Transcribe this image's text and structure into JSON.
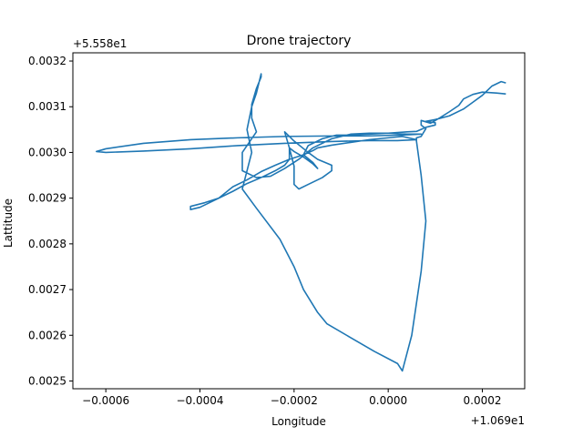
{
  "chart_data": {
    "type": "line",
    "title": "Drone trajectory",
    "xlabel": "Longitude",
    "ylabel": "Lattitude",
    "x_offset_text": "+1.069e1",
    "y_offset_text": "+5.558e1",
    "xlim": [
      -0.00067,
      0.00029
    ],
    "ylim": [
      0.002483,
      0.003218
    ],
    "x_ticks": [
      -0.0006,
      -0.0004,
      -0.0002,
      0.0,
      0.0002
    ],
    "x_tick_labels": [
      "−0.0006",
      "−0.0004",
      "−0.0002",
      "0.0000",
      "0.0002"
    ],
    "y_ticks": [
      0.0025,
      0.0026,
      0.0027,
      0.0028,
      0.0029,
      0.003,
      0.0031,
      0.0032
    ],
    "y_tick_labels": [
      "0.0025",
      "0.0026",
      "0.0027",
      "0.0028",
      "0.0029",
      "0.0030",
      "0.0031",
      "0.0032"
    ],
    "grid": false,
    "color": "#1f77b4",
    "series": [
      {
        "points": [
          [
            0.00025,
            0.003128
          ],
          [
            0.00023,
            0.00313
          ],
          [
            0.0002,
            0.003132
          ],
          [
            0.00018,
            0.003127
          ],
          [
            0.00016,
            0.003117
          ],
          [
            0.00015,
            0.003103
          ],
          [
            0.00013,
            0.003089
          ],
          [
            0.00011,
            0.003076
          ],
          [
            9e-05,
            0.003064
          ],
          [
            7e-05,
            0.00307
          ],
          [
            7e-05,
            0.00306
          ],
          [
            8e-05,
            0.003052
          ],
          [
            7e-05,
            0.003035
          ],
          [
            6e-05,
            0.003032
          ],
          [
            6e-05,
            0.003025
          ],
          [
            7e-05,
            0.00295
          ],
          [
            8e-05,
            0.00285
          ],
          [
            7e-05,
            0.00274
          ],
          [
            5e-05,
            0.0026
          ],
          [
            3e-05,
            0.002522
          ],
          [
            2e-05,
            0.002538
          ],
          [
            -3e-05,
            0.002565
          ],
          [
            -8e-05,
            0.002595
          ],
          [
            -0.00013,
            0.002625
          ],
          [
            -0.00015,
            0.00265
          ],
          [
            -0.00018,
            0.0027
          ],
          [
            -0.0002,
            0.00275
          ],
          [
            -0.00023,
            0.00281
          ],
          [
            -0.00028,
            0.002878
          ],
          [
            -0.00031,
            0.00292
          ],
          [
            -0.0003,
            0.00296
          ],
          [
            -0.00029,
            0.003
          ],
          [
            -0.0003,
            0.00305
          ],
          [
            -0.00029,
            0.0031
          ],
          [
            -0.00028,
            0.00313
          ],
          [
            -0.00027,
            0.003172
          ],
          [
            -0.00027,
            0.003165
          ],
          [
            -0.00028,
            0.00314
          ],
          [
            -0.00029,
            0.003105
          ],
          [
            -0.00029,
            0.003075
          ],
          [
            -0.00028,
            0.003045
          ],
          [
            -0.00031,
            0.003
          ],
          [
            -0.00031,
            0.00296
          ],
          [
            -0.00028,
            0.002945
          ],
          [
            -0.00025,
            0.002948
          ],
          [
            -0.00022,
            0.002965
          ],
          [
            -0.00019,
            0.002985
          ],
          [
            -0.00016,
            0.00301
          ],
          [
            -0.00012,
            0.00303
          ],
          [
            -8e-05,
            0.00304
          ],
          [
            -4e-05,
            0.003042
          ],
          [
            0.0,
            0.003042
          ],
          [
            4e-05,
            0.00304
          ],
          [
            6e-05,
            0.00304
          ],
          [
            7e-05,
            0.00304
          ],
          [
            3e-05,
            0.003038
          ],
          [
            -5e-05,
            0.003036
          ],
          [
            -0.00013,
            0.003036
          ],
          [
            -0.00022,
            0.003035
          ],
          [
            -0.00032,
            0.003032
          ],
          [
            -0.00042,
            0.003028
          ],
          [
            -0.00052,
            0.00302
          ],
          [
            -0.0006,
            0.003008
          ],
          [
            -0.00062,
            0.003002
          ],
          [
            -0.0006,
            0.003
          ],
          [
            -0.00052,
            0.003003
          ],
          [
            -0.00042,
            0.003008
          ],
          [
            -0.00032,
            0.003015
          ],
          [
            -0.00022,
            0.00302
          ],
          [
            -0.00012,
            0.003024
          ],
          [
            -4e-05,
            0.003026
          ],
          [
            2e-05,
            0.003026
          ],
          [
            6e-05,
            0.003028
          ],
          [
            3e-05,
            0.003035
          ],
          [
            0.0,
            0.003032
          ],
          [
            -4e-05,
            0.003028
          ],
          [
            -8e-05,
            0.003022
          ],
          [
            -0.00012,
            0.003016
          ],
          [
            -0.00015,
            0.00301
          ],
          [
            -0.00016,
            0.003004
          ],
          [
            -0.00018,
            0.002995
          ],
          [
            -0.00021,
            0.002985
          ],
          [
            -0.00024,
            0.002972
          ],
          [
            -0.00027,
            0.002958
          ],
          [
            -0.0003,
            0.00294
          ],
          [
            -0.00033,
            0.002925
          ],
          [
            -0.00036,
            0.0029
          ],
          [
            -0.00039,
            0.00289
          ],
          [
            -0.00042,
            0.002882
          ],
          [
            -0.00042,
            0.002875
          ],
          [
            -0.0004,
            0.00288
          ],
          [
            -0.00037,
            0.002895
          ],
          [
            -0.00033,
            0.002915
          ],
          [
            -0.0003,
            0.002932
          ],
          [
            -0.00027,
            0.002945
          ],
          [
            -0.00024,
            0.00296
          ],
          [
            -0.00022,
            0.002972
          ],
          [
            -0.00021,
            0.002985
          ],
          [
            -0.00021,
            0.00301
          ],
          [
            -0.00022,
            0.003045
          ],
          [
            -0.0002,
            0.003025
          ],
          [
            -0.00017,
            0.003
          ],
          [
            -0.00015,
            0.002985
          ],
          [
            -0.00012,
            0.002972
          ],
          [
            -0.00012,
            0.00296
          ],
          [
            -0.00014,
            0.002945
          ],
          [
            -0.00017,
            0.00293
          ],
          [
            -0.00019,
            0.00292
          ],
          [
            -0.0002,
            0.00293
          ],
          [
            -0.0002,
            0.00297
          ],
          [
            -0.00021,
            0.00301
          ],
          [
            -0.0002,
            0.003002
          ],
          [
            -0.00018,
            0.00299
          ],
          [
            -0.00016,
            0.002975
          ],
          [
            -0.00015,
            0.002965
          ],
          [
            -0.00016,
            0.002978
          ],
          [
            -0.00018,
            0.002995
          ],
          [
            -0.00017,
            0.003015
          ],
          [
            -0.00014,
            0.00303
          ],
          [
            -0.00011,
            0.003038
          ],
          [
            -8e-05,
            0.003038
          ],
          [
            -4e-05,
            0.00304
          ],
          [
            0.0,
            0.003042
          ],
          [
            4e-05,
            0.003045
          ],
          [
            6e-05,
            0.003046
          ],
          [
            8e-05,
            0.003055
          ],
          [
            0.0001,
            0.00306
          ],
          [
            0.0001,
            0.003065
          ],
          [
            8e-05,
            0.003068
          ],
          [
            0.0001,
            0.003072
          ],
          [
            0.00013,
            0.00308
          ],
          [
            0.00016,
            0.003095
          ],
          [
            0.00018,
            0.00311
          ],
          [
            0.0002,
            0.003125
          ],
          [
            0.00022,
            0.003145
          ],
          [
            0.00024,
            0.003155
          ],
          [
            0.00025,
            0.003152
          ]
        ]
      }
    ]
  }
}
